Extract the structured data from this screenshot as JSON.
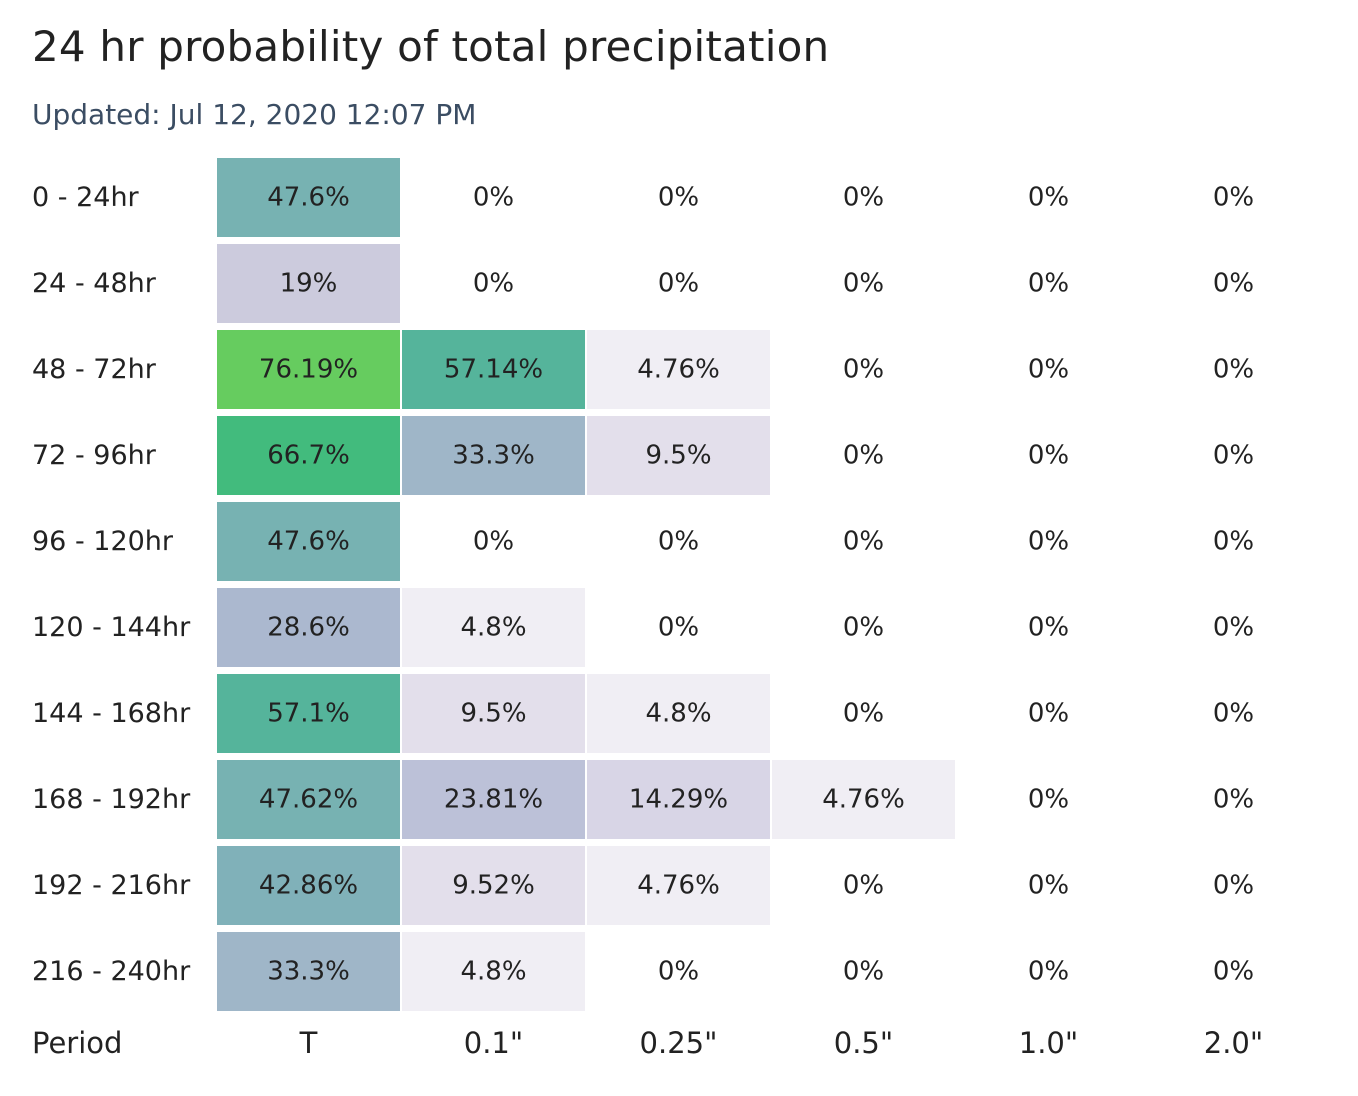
{
  "header": {
    "title": "24 hr probability of total precipitation",
    "updated": "Updated: Jul 12, 2020 12:07 PM"
  },
  "chart_data": {
    "type": "heatmap",
    "title": "24 hr probability of total precipitation",
    "xlabel": "Period",
    "columns": [
      "T",
      "0.1\"",
      "0.25\"",
      "0.5\"",
      "1.0\"",
      "2.0\""
    ],
    "rows": [
      "0 - 24hr",
      "24 - 48hr",
      "48 - 72hr",
      "72 - 96hr",
      "96 - 120hr",
      "120 - 144hr",
      "144 - 168hr",
      "168 - 192hr",
      "192 - 216hr",
      "216 - 240hr"
    ],
    "labels": [
      [
        "47.6%",
        "0%",
        "0%",
        "0%",
        "0%",
        "0%"
      ],
      [
        "19%",
        "0%",
        "0%",
        "0%",
        "0%",
        "0%"
      ],
      [
        "76.19%",
        "57.14%",
        "4.76%",
        "0%",
        "0%",
        "0%"
      ],
      [
        "66.7%",
        "33.3%",
        "9.5%",
        "0%",
        "0%",
        "0%"
      ],
      [
        "47.6%",
        "0%",
        "0%",
        "0%",
        "0%",
        "0%"
      ],
      [
        "28.6%",
        "4.8%",
        "0%",
        "0%",
        "0%",
        "0%"
      ],
      [
        "57.1%",
        "9.5%",
        "4.8%",
        "0%",
        "0%",
        "0%"
      ],
      [
        "47.62%",
        "23.81%",
        "14.29%",
        "4.76%",
        "0%",
        "0%"
      ],
      [
        "42.86%",
        "9.52%",
        "4.76%",
        "0%",
        "0%",
        "0%"
      ],
      [
        "33.3%",
        "4.8%",
        "0%",
        "0%",
        "0%",
        "0%"
      ]
    ],
    "values": [
      [
        47.6,
        0,
        0,
        0,
        0,
        0
      ],
      [
        19,
        0,
        0,
        0,
        0,
        0
      ],
      [
        76.19,
        57.14,
        4.76,
        0,
        0,
        0
      ],
      [
        66.7,
        33.3,
        9.5,
        0,
        0,
        0
      ],
      [
        47.6,
        0,
        0,
        0,
        0,
        0
      ],
      [
        28.6,
        4.8,
        0,
        0,
        0,
        0
      ],
      [
        57.1,
        9.5,
        4.8,
        0,
        0,
        0
      ],
      [
        47.62,
        23.81,
        14.29,
        4.76,
        0,
        0
      ],
      [
        42.86,
        9.52,
        4.76,
        0,
        0,
        0
      ],
      [
        33.3,
        4.8,
        0,
        0,
        0,
        0
      ]
    ],
    "color_scale": {
      "zero": "#ffffff",
      "stops": [
        {
          "value": 4.76,
          "color": "#f0eef4"
        },
        {
          "value": 9.5,
          "color": "#e3dfeb"
        },
        {
          "value": 14.29,
          "color": "#d8d5e6"
        },
        {
          "value": 19,
          "color": "#cccbdd"
        },
        {
          "value": 23.81,
          "color": "#bcc1d8"
        },
        {
          "value": 28.6,
          "color": "#abb8cf"
        },
        {
          "value": 33.3,
          "color": "#9fb6c8"
        },
        {
          "value": 42.86,
          "color": "#80b1b9"
        },
        {
          "value": 47.6,
          "color": "#77b2b2"
        },
        {
          "value": 57.1,
          "color": "#55b49b"
        },
        {
          "value": 66.7,
          "color": "#42bb7d"
        },
        {
          "value": 76.19,
          "color": "#66cc5f"
        }
      ]
    }
  }
}
